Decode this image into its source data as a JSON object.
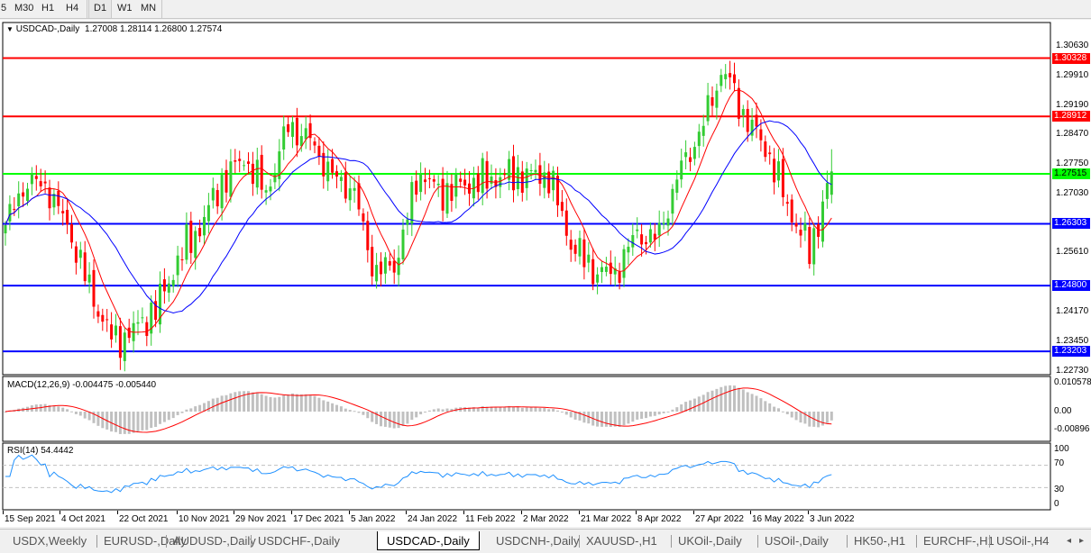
{
  "toolbar": {
    "timeframes": [
      "5",
      "M30",
      "H1",
      "H4",
      "D1",
      "W1",
      "MN"
    ],
    "active": "D1"
  },
  "header": {
    "symbol": "USDCAD-,Daily",
    "open": "1.27008",
    "high": "1.28114",
    "low": "1.26800",
    "close": "1.27574"
  },
  "price_axis": {
    "ticks": [
      "1.30630",
      "1.29910",
      "1.29190",
      "1.28470",
      "1.27750",
      "1.27030",
      "1.25610",
      "1.24170",
      "1.23450",
      "1.22730"
    ]
  },
  "levels": [
    {
      "price": 1.30328,
      "label": "1.30328",
      "color": "#ff0000"
    },
    {
      "price": 1.28912,
      "label": "1.28912",
      "color": "#ff0000"
    },
    {
      "price": 1.27515,
      "label": "1.27515",
      "color": "#00ff00"
    },
    {
      "price": 1.26303,
      "label": "1.26303",
      "color": "#0000ff"
    },
    {
      "price": 1.248,
      "label": "1.24800",
      "color": "#0000ff"
    },
    {
      "price": 1.23203,
      "label": "1.23203",
      "color": "#0000ff"
    }
  ],
  "chart_data": {
    "type": "candlestick",
    "approx_close_path": [
      1.2627,
      1.2736,
      1.2714,
      1.2605,
      1.2452,
      1.2342,
      1.2375,
      1.243,
      1.255,
      1.2627,
      1.2736,
      1.2791,
      1.2703,
      1.2868,
      1.2835,
      1.2747,
      1.2714,
      1.2507,
      1.2539,
      1.2758,
      1.2703,
      1.2725,
      1.2736,
      1.2747,
      1.2747,
      1.2747,
      1.2583,
      1.2518,
      1.2507,
      1.2605,
      1.2594,
      1.2758,
      1.2857,
      1.301,
      1.289,
      1.2813,
      1.2671,
      1.2561,
      1.27574
    ],
    "last_bar": {
      "open": 1.27008,
      "high": 1.28114,
      "low": 1.268,
      "close": 1.27574
    },
    "colors": {
      "up": "#33cc33",
      "down": "#ff0000",
      "ma_fast": "#ff0000",
      "ma_slow": "#0000ff"
    },
    "x_ticks": [
      "15 Sep 2021",
      "4 Oct 2021",
      "22 Oct 2021",
      "10 Nov 2021",
      "29 Nov 2021",
      "17 Dec 2021",
      "5 Jan 2022",
      "24 Jan 2022",
      "11 Feb 2022",
      "2 Mar 2022",
      "21 Mar 2022",
      "8 Apr 2022",
      "27 Apr 2022",
      "16 May 2022",
      "3 Jun 2022"
    ],
    "y_range": [
      1.2273,
      1.3063
    ]
  },
  "macd": {
    "title": "MACD(12,26,9) -0.004475 -0.005440",
    "ticks": [
      "0.010578",
      "0.00",
      "-0.00896"
    ],
    "range": [
      -0.00896,
      0.010578
    ]
  },
  "rsi": {
    "title": "RSI(14) 54.4442",
    "ticks": [
      "100",
      "70",
      "30",
      "0"
    ],
    "levels": [
      70,
      30
    ]
  },
  "tabs": [
    "USDX,Weekly",
    "EURUSD-,Daily",
    "AUDUSD-,Daily",
    "USDCHF-,Daily",
    "USDCAD-,Daily",
    "USDCNH-,Daily",
    "XAUUSD-,H1",
    "UKOil-,Daily",
    "USOil-,Daily",
    "HK50-,H1",
    "EURCHF-,H1",
    "USOil-,H4"
  ],
  "active_tab": "USDCAD-,Daily"
}
